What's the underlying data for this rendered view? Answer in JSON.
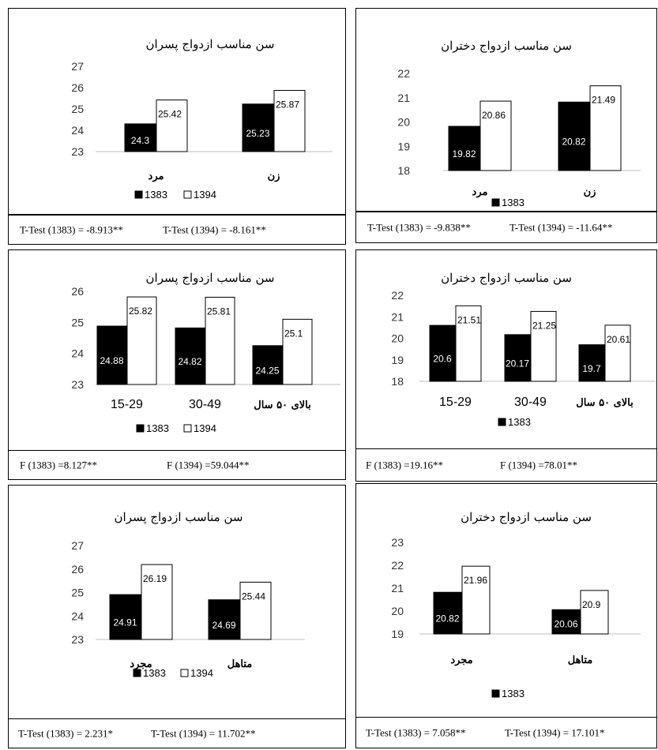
{
  "chart_data": [
    {
      "type": "bar",
      "title": "سن مناسب ازدواج پسران",
      "categories": [
        "مرد",
        "زن"
      ],
      "ylim": [
        23,
        27
      ],
      "yticks": [
        23,
        24,
        25,
        26,
        27
      ],
      "series": [
        {
          "name": "1383",
          "values": [
            24.3,
            25.23
          ],
          "color": "#000000"
        },
        {
          "name": "1394",
          "values": [
            25.42,
            25.87
          ],
          "color": "#ffffff"
        }
      ],
      "legend": [
        "1383",
        "1394"
      ],
      "footer": [
        "T-Test (1383) = -8.913**",
        "T-Test (1394) = -8.161**"
      ]
    },
    {
      "type": "bar",
      "title": "سن مناسب ازدواج دختران",
      "categories": [
        "مرد",
        "زن"
      ],
      "ylim": [
        18,
        22
      ],
      "yticks": [
        18,
        19,
        20,
        21,
        22
      ],
      "series": [
        {
          "name": "1383",
          "values": [
            19.82,
            20.82
          ],
          "color": "#000000"
        },
        {
          "name": "",
          "values": [
            20.86,
            21.49
          ],
          "color": "#ffffff"
        }
      ],
      "legend": [
        "1383"
      ],
      "footer": [
        "T-Test (1383) = -9.838**",
        "T-Test (1394) = -11.64**"
      ]
    },
    {
      "type": "bar",
      "title": "سن مناسب ازدواج پسران",
      "categories": [
        "15-29",
        "30-49",
        "بالای ۵۰ سال"
      ],
      "ylim": [
        23,
        26
      ],
      "yticks": [
        23,
        24,
        25,
        26
      ],
      "series": [
        {
          "name": "1383",
          "values": [
            24.88,
            24.82,
            24.25
          ],
          "color": "#000000"
        },
        {
          "name": "1394",
          "values": [
            25.82,
            25.81,
            25.1
          ],
          "color": "#ffffff"
        }
      ],
      "legend": [
        "1383",
        "1394"
      ],
      "footer": [
        "F (1383) =8.127**",
        "F (1394) =59.044**"
      ]
    },
    {
      "type": "bar",
      "title": "سن مناسب ازدواج دختران",
      "categories": [
        "15-29",
        "30-49",
        "بالای ۵۰ سال"
      ],
      "ylim": [
        18,
        22
      ],
      "yticks": [
        18,
        19,
        20,
        21,
        22
      ],
      "series": [
        {
          "name": "1383",
          "values": [
            20.6,
            20.17,
            19.7
          ],
          "color": "#000000"
        },
        {
          "name": "",
          "values": [
            21.51,
            21.25,
            20.61
          ],
          "color": "#ffffff"
        }
      ],
      "legend": [
        "1383"
      ],
      "footer": [
        "F (1383) =19.16**",
        "F (1394) =78.01**"
      ]
    },
    {
      "type": "bar",
      "title": "سن مناسب ازدواج پسران",
      "categories": [
        "مجرد",
        "متاهل"
      ],
      "ylim": [
        23,
        27
      ],
      "yticks": [
        23,
        24,
        25,
        26,
        27
      ],
      "series": [
        {
          "name": "1383",
          "values": [
            24.91,
            24.69
          ],
          "color": "#000000"
        },
        {
          "name": "1394",
          "values": [
            26.19,
            25.44
          ],
          "color": "#ffffff"
        }
      ],
      "legend": [
        "1383",
        "1394"
      ],
      "footer": [
        "T-Test (1383) = 2.231*",
        "T-Test (1394) = 11.702**"
      ]
    },
    {
      "type": "bar",
      "title": "سن مناسب ازدواج دختران",
      "categories": [
        "مجرد",
        "متاهل"
      ],
      "ylim": [
        19,
        23
      ],
      "yticks": [
        19,
        20,
        21,
        22,
        23
      ],
      "series": [
        {
          "name": "1383",
          "values": [
            20.82,
            20.06
          ],
          "color": "#000000"
        },
        {
          "name": "",
          "values": [
            21.96,
            20.9
          ],
          "color": "#ffffff"
        }
      ],
      "legend": [
        "1383"
      ],
      "footer": [
        "T-Test (1383) = 7.058**",
        "T-Test (1394) = 17.101*"
      ]
    }
  ]
}
